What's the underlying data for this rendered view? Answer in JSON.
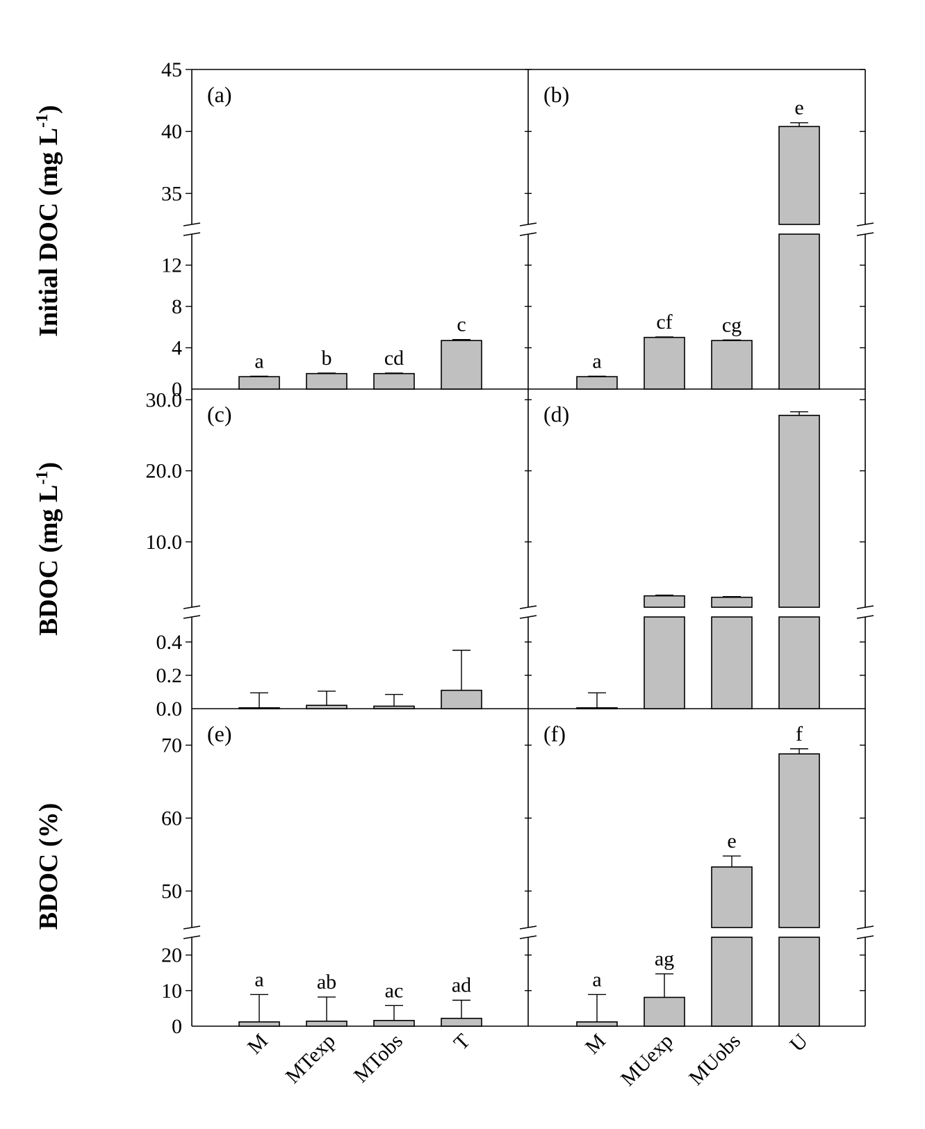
{
  "chart_data": [
    {
      "type": "bar",
      "panel": "(a)",
      "categories": [
        "M",
        "MTexp",
        "MTobs",
        "T"
      ],
      "values": [
        1.2,
        1.5,
        1.5,
        4.7
      ],
      "errors": [
        0.05,
        0.05,
        0.05,
        0.1
      ],
      "letters": [
        "a",
        "b",
        "cd",
        "c"
      ],
      "ylabel": "Initial DOC (mg L-1)",
      "ylim_lower": [
        0,
        15
      ],
      "ylim_upper": [
        32.5,
        45
      ],
      "yticks_lower": [
        "0",
        "4",
        "8",
        "12"
      ],
      "yticks_upper": [
        "35",
        "40",
        "45"
      ]
    },
    {
      "type": "bar",
      "panel": "(b)",
      "categories": [
        "M",
        "MUexp",
        "MUobs",
        "U"
      ],
      "values": [
        1.2,
        5.0,
        4.7,
        40.4
      ],
      "errors": [
        0.05,
        0.05,
        0.05,
        0.3
      ],
      "letters": [
        "a",
        "cf",
        "cg",
        "e"
      ],
      "ylim_lower": [
        0,
        15
      ],
      "ylim_upper": [
        32.5,
        45
      ]
    },
    {
      "type": "bar",
      "panel": "(c)",
      "categories": [
        "M",
        "MTexp",
        "MTobs",
        "T"
      ],
      "values": [
        0.005,
        0.02,
        0.015,
        0.11
      ],
      "errors": [
        0.09,
        0.085,
        0.07,
        0.24
      ],
      "letters": [
        "",
        "",
        "",
        ""
      ],
      "ylabel": "BDOC (mg L-1)",
      "ylim_lower": [
        0,
        0.55
      ],
      "ylim_upper": [
        0.8,
        31.5
      ],
      "yticks_lower": [
        "0.0",
        "0.2",
        "0.4"
      ],
      "yticks_upper": [
        "10.0",
        "20.0",
        "30.0"
      ]
    },
    {
      "type": "bar",
      "panel": "(d)",
      "categories": [
        "M",
        "MUexp",
        "MUobs",
        "U"
      ],
      "values": [
        0.005,
        2.4,
        2.2,
        27.8
      ],
      "errors": [
        0.09,
        0.1,
        0.1,
        0.5
      ],
      "letters": [
        "",
        "",
        "",
        ""
      ],
      "ylim_lower": [
        0,
        0.55
      ],
      "ylim_upper": [
        0.8,
        31.5
      ]
    },
    {
      "type": "bar",
      "panel": "(e)",
      "categories": [
        "M",
        "MTexp",
        "MTobs",
        "T"
      ],
      "values": [
        1.2,
        1.4,
        1.6,
        2.2
      ],
      "errors": [
        7.7,
        6.8,
        4.2,
        5.1
      ],
      "letters": [
        "a",
        "ab",
        "ac",
        "ad"
      ],
      "ylabel": "BDOC (%)",
      "ylim_lower": [
        0,
        25
      ],
      "ylim_upper": [
        45,
        75
      ],
      "yticks_lower": [
        "0",
        "10",
        "20"
      ],
      "yticks_upper": [
        "50",
        "60",
        "70"
      ]
    },
    {
      "type": "bar",
      "panel": "(f)",
      "categories": [
        "M",
        "MUexp",
        "MUobs",
        "U"
      ],
      "values": [
        1.2,
        8.1,
        53.3,
        68.8
      ],
      "errors": [
        7.7,
        6.6,
        1.5,
        0.7
      ],
      "letters": [
        "a",
        "ag",
        "e",
        "f"
      ],
      "ylim_lower": [
        0,
        25
      ],
      "ylim_upper": [
        45,
        75
      ]
    }
  ]
}
